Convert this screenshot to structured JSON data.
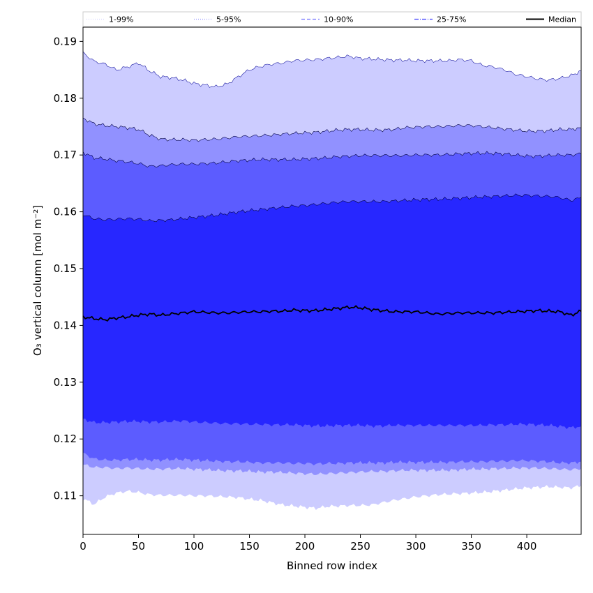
{
  "chart_data": {
    "type": "area",
    "title": "",
    "xlabel": "Binned row index",
    "ylabel": "O₃ vertical column [mol m⁻²]",
    "xlim": [
      0,
      449
    ],
    "ylim": [
      0.1032,
      0.1925
    ],
    "x_ticks": [
      0,
      50,
      100,
      150,
      200,
      250,
      300,
      350,
      400
    ],
    "y_ticks": [
      0.11,
      0.12,
      0.13,
      0.14,
      0.15,
      0.16,
      0.17,
      0.18,
      0.19
    ],
    "y_tick_labels": [
      "0.11",
      "0.12",
      "0.13",
      "0.14",
      "0.15",
      "0.16",
      "0.17",
      "0.18",
      "0.19"
    ],
    "grid": false,
    "legend_position": "top",
    "x": [
      0,
      10,
      20,
      30,
      40,
      50,
      60,
      70,
      80,
      90,
      100,
      110,
      120,
      130,
      140,
      150,
      160,
      170,
      180,
      190,
      200,
      210,
      220,
      230,
      240,
      250,
      260,
      270,
      280,
      290,
      300,
      310,
      320,
      330,
      340,
      350,
      360,
      370,
      380,
      390,
      400,
      410,
      420,
      430,
      440,
      449
    ],
    "series": [
      {
        "name": "1-99%",
        "color": "#ccccff",
        "line_style": "dotted",
        "upper": [
          0.188,
          0.1865,
          0.186,
          0.185,
          0.1855,
          0.1862,
          0.1848,
          0.1838,
          0.1836,
          0.1832,
          0.1826,
          0.1823,
          0.182,
          0.1825,
          0.1838,
          0.185,
          0.1856,
          0.186,
          0.1862,
          0.1866,
          0.1867,
          0.1868,
          0.187,
          0.1872,
          0.1874,
          0.187,
          0.1869,
          0.1868,
          0.1867,
          0.1867,
          0.1866,
          0.1866,
          0.1866,
          0.1866,
          0.1868,
          0.1866,
          0.1858,
          0.1855,
          0.185,
          0.1842,
          0.1838,
          0.1834,
          0.1832,
          0.1835,
          0.184,
          0.1848
        ],
        "lower": [
          0.1095,
          0.1085,
          0.1098,
          0.1105,
          0.1108,
          0.1106,
          0.1102,
          0.1101,
          0.1101,
          0.1101,
          0.11,
          0.11,
          0.1099,
          0.1098,
          0.1097,
          0.1094,
          0.1092,
          0.1088,
          0.1084,
          0.1082,
          0.108,
          0.1078,
          0.1081,
          0.1082,
          0.1083,
          0.1083,
          0.1084,
          0.1088,
          0.1092,
          0.1095,
          0.1098,
          0.11,
          0.1102,
          0.1103,
          0.1104,
          0.1105,
          0.1106,
          0.1108,
          0.111,
          0.1112,
          0.1114,
          0.1115,
          0.1116,
          0.1115,
          0.1114,
          0.1118
        ]
      },
      {
        "name": "5-95%",
        "color": "#9191ff",
        "line_style": "dotted",
        "upper": [
          0.1765,
          0.1755,
          0.1752,
          0.175,
          0.1748,
          0.1745,
          0.1735,
          0.1728,
          0.1727,
          0.1727,
          0.1726,
          0.1727,
          0.1728,
          0.173,
          0.1732,
          0.1733,
          0.1734,
          0.1735,
          0.1737,
          0.1738,
          0.1739,
          0.174,
          0.1742,
          0.1744,
          0.1745,
          0.1745,
          0.1744,
          0.1744,
          0.1745,
          0.1748,
          0.1749,
          0.175,
          0.175,
          0.1751,
          0.1752,
          0.1752,
          0.175,
          0.1748,
          0.1746,
          0.1744,
          0.1742,
          0.1742,
          0.1743,
          0.1745,
          0.1745,
          0.1748
        ],
        "lower": [
          0.1155,
          0.115,
          0.115,
          0.1148,
          0.1149,
          0.1148,
          0.1147,
          0.1147,
          0.1148,
          0.1148,
          0.1147,
          0.1146,
          0.1145,
          0.1144,
          0.1144,
          0.1143,
          0.1142,
          0.1142,
          0.1141,
          0.114,
          0.1139,
          0.1138,
          0.1139,
          0.114,
          0.1141,
          0.1142,
          0.1143,
          0.1143,
          0.1144,
          0.1145,
          0.1145,
          0.1145,
          0.1145,
          0.1145,
          0.1146,
          0.1147,
          0.1147,
          0.1148,
          0.1148,
          0.1149,
          0.1149,
          0.1149,
          0.1148,
          0.1147,
          0.1146,
          0.1148
        ]
      },
      {
        "name": "10-90%",
        "color": "#5c5cff",
        "line_style": "dashed",
        "upper": [
          0.1705,
          0.1695,
          0.1693,
          0.169,
          0.1688,
          0.1685,
          0.168,
          0.1681,
          0.1683,
          0.1684,
          0.1684,
          0.1685,
          0.1686,
          0.1688,
          0.169,
          0.1691,
          0.1692,
          0.1692,
          0.1692,
          0.1692,
          0.1693,
          0.1694,
          0.1695,
          0.1697,
          0.1698,
          0.1699,
          0.1699,
          0.1699,
          0.1699,
          0.1699,
          0.17,
          0.17,
          0.17,
          0.1701,
          0.1702,
          0.1703,
          0.1703,
          0.1703,
          0.1702,
          0.17,
          0.1698,
          0.1698,
          0.1699,
          0.17,
          0.17,
          0.1702
        ],
        "lower": [
          0.1175,
          0.1165,
          0.1163,
          0.1163,
          0.1164,
          0.1164,
          0.1163,
          0.1163,
          0.1164,
          0.1164,
          0.1163,
          0.1162,
          0.1161,
          0.116,
          0.116,
          0.1159,
          0.1158,
          0.1158,
          0.1158,
          0.1157,
          0.1157,
          0.1156,
          0.1157,
          0.1157,
          0.1158,
          0.1158,
          0.1158,
          0.1158,
          0.1159,
          0.1159,
          0.1159,
          0.1159,
          0.1159,
          0.1159,
          0.116,
          0.116,
          0.116,
          0.1161,
          0.1161,
          0.1162,
          0.1162,
          0.1161,
          0.116,
          0.1158,
          0.1158,
          0.116
        ]
      },
      {
        "name": "25-75%",
        "color": "#2727ff",
        "line_style": "dashdot",
        "upper": [
          0.1595,
          0.1588,
          0.1586,
          0.1587,
          0.1588,
          0.1587,
          0.1584,
          0.1585,
          0.1586,
          0.1588,
          0.159,
          0.1592,
          0.1594,
          0.1597,
          0.16,
          0.1602,
          0.1604,
          0.1606,
          0.1608,
          0.161,
          0.1611,
          0.1613,
          0.1615,
          0.1617,
          0.1618,
          0.1618,
          0.1618,
          0.1618,
          0.1619,
          0.162,
          0.1621,
          0.1622,
          0.1622,
          0.1623,
          0.1624,
          0.1625,
          0.1626,
          0.1627,
          0.1628,
          0.1629,
          0.1629,
          0.1628,
          0.1627,
          0.1625,
          0.162,
          0.1625
        ],
        "lower": [
          0.1235,
          0.1229,
          0.1229,
          0.123,
          0.1231,
          0.1231,
          0.123,
          0.123,
          0.1231,
          0.1232,
          0.123,
          0.1229,
          0.1228,
          0.1227,
          0.1227,
          0.1226,
          0.1226,
          0.1225,
          0.1225,
          0.1225,
          0.1224,
          0.1223,
          0.1223,
          0.1224,
          0.1224,
          0.1224,
          0.1223,
          0.1223,
          0.1224,
          0.1224,
          0.1224,
          0.1224,
          0.1224,
          0.1224,
          0.1224,
          0.1224,
          0.1224,
          0.1225,
          0.1225,
          0.1226,
          0.1226,
          0.1225,
          0.1224,
          0.1222,
          0.122,
          0.1222
        ]
      },
      {
        "name": "Median",
        "color": "#000000",
        "line_style": "solid",
        "values": [
          0.1415,
          0.1412,
          0.141,
          0.1413,
          0.1415,
          0.1418,
          0.142,
          0.1418,
          0.142,
          0.1422,
          0.1424,
          0.1423,
          0.1422,
          0.1422,
          0.1423,
          0.1424,
          0.1424,
          0.1425,
          0.1425,
          0.1427,
          0.1426,
          0.1426,
          0.1428,
          0.143,
          0.1432,
          0.1431,
          0.1428,
          0.1426,
          0.1424,
          0.1424,
          0.1424,
          0.1422,
          0.142,
          0.1421,
          0.1422,
          0.1422,
          0.1422,
          0.1422,
          0.1423,
          0.1424,
          0.1425,
          0.1426,
          0.1425,
          0.1424,
          0.1418,
          0.1425
        ]
      }
    ]
  }
}
